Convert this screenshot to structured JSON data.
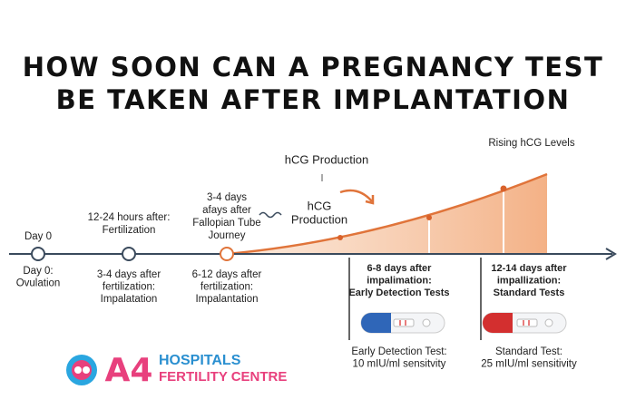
{
  "title": [
    "HOW SOON CAN A PREGNANCY TEST",
    "BE TAKEN AFTER IMPLANTATION"
  ],
  "curve_label": "Rising hCG Levels",
  "hcg_production_top": "hCG Production",
  "hcg_production_arrow": [
    "hCG",
    "Production"
  ],
  "timeline": [
    {
      "above": [
        "Day 0"
      ],
      "below": [
        "Day 0:",
        "Ovulation"
      ]
    },
    {
      "above": [
        "12-24 hours after:",
        "Fertilization"
      ],
      "below": [
        "3-4 days after",
        "fertilization:",
        "Impalatation"
      ]
    },
    {
      "above": [
        "3-4 days",
        "afays after",
        "Fallopian Tube",
        "Journey"
      ],
      "below": [
        "6-12 days after",
        "fertilization:",
        "Impalantation"
      ]
    }
  ],
  "tests": [
    {
      "heading": [
        "6-8 days after",
        "impalimation:",
        "Early Detection Tests"
      ],
      "caption": [
        "Early Detection Test:",
        "10 mIU/ml sensitvity"
      ]
    },
    {
      "heading": [
        "12-14 days after",
        "impallization:",
        "Standard Tests"
      ],
      "caption": [
        "Standard Test:",
        "25 mIU/ml sensitivity"
      ]
    }
  ],
  "logo": {
    "mark": "A4",
    "name": "HOSPITALS",
    "subtitle": "FERTILITY CENTRE"
  }
}
